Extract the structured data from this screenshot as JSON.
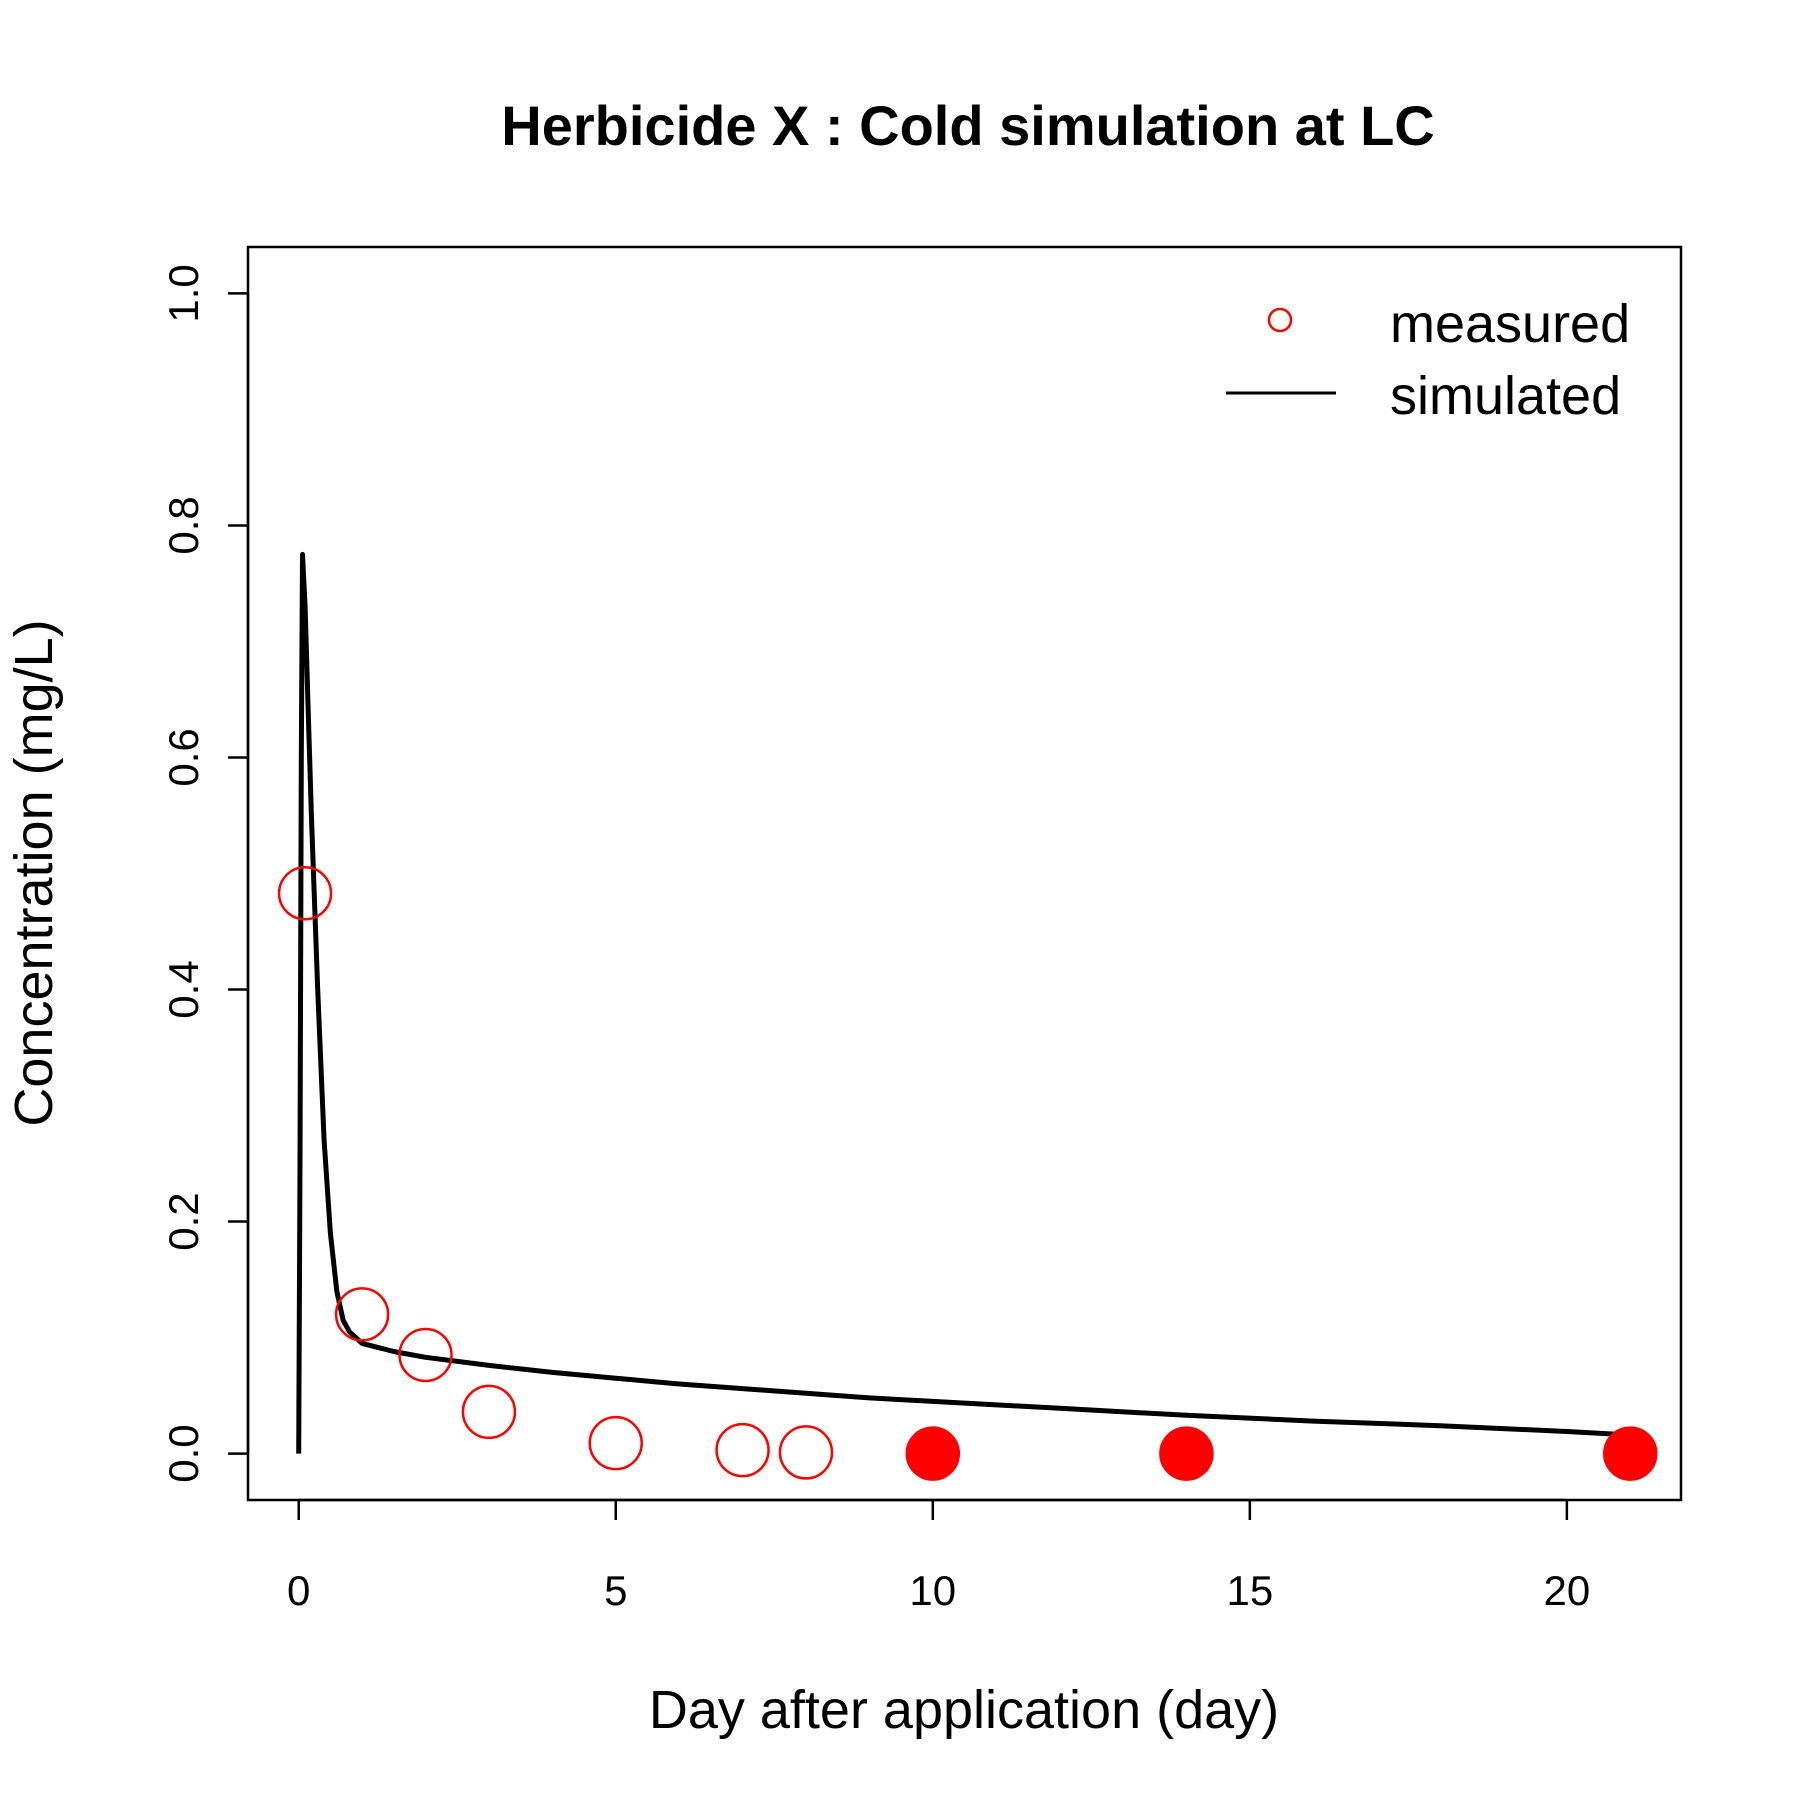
{
  "chart_data": {
    "type": "scatter",
    "title": "Herbicide X : Cold simulation at  LC",
    "xlabel": "Day after application (day)",
    "ylabel": "Concentration (mg/L)",
    "xlim": [
      -0.8,
      21.8
    ],
    "ylim": [
      -0.04,
      1.04
    ],
    "x_ticks": [
      0,
      5,
      10,
      15,
      20
    ],
    "y_ticks": [
      0.0,
      0.2,
      0.4,
      0.6,
      0.8,
      1.0
    ],
    "x_tick_labels": [
      "0",
      "5",
      "10",
      "15",
      "20"
    ],
    "y_tick_labels": [
      "0.0",
      "0.2",
      "0.4",
      "0.6",
      "0.8",
      "1.0"
    ],
    "grid": false,
    "legend_position": "top-right",
    "legend": [
      {
        "label": "measured",
        "marker": "open-circle",
        "color": "#ff0000"
      },
      {
        "label": "simulated",
        "marker": "line",
        "color": "#000000"
      }
    ],
    "series": [
      {
        "name": "measured",
        "kind": "points",
        "color": "#ff0000",
        "points": [
          {
            "x": 0.1,
            "y": 0.483,
            "filled": false
          },
          {
            "x": 1,
            "y": 0.12,
            "filled": false
          },
          {
            "x": 2,
            "y": 0.085,
            "filled": false
          },
          {
            "x": 3,
            "y": 0.036,
            "filled": false
          },
          {
            "x": 5,
            "y": 0.009,
            "filled": false
          },
          {
            "x": 7,
            "y": 0.003,
            "filled": false
          },
          {
            "x": 8,
            "y": 0.001,
            "filled": false
          },
          {
            "x": 10,
            "y": 0.0,
            "filled": true
          },
          {
            "x": 14,
            "y": 0.0,
            "filled": true
          },
          {
            "x": 21,
            "y": 0.0,
            "filled": true
          }
        ]
      },
      {
        "name": "simulated",
        "kind": "line",
        "color": "#000000",
        "x": [
          0,
          0.02,
          0.04,
          0.06,
          0.1,
          0.15,
          0.2,
          0.3,
          0.4,
          0.5,
          0.6,
          0.7,
          0.8,
          1,
          1.5,
          2,
          3,
          4,
          5,
          6,
          7,
          8,
          9,
          10,
          12,
          14,
          16,
          18,
          20,
          21
        ],
        "y": [
          0,
          0.25,
          0.6,
          0.775,
          0.73,
          0.64,
          0.55,
          0.4,
          0.27,
          0.19,
          0.14,
          0.115,
          0.105,
          0.095,
          0.088,
          0.083,
          0.076,
          0.07,
          0.065,
          0.06,
          0.056,
          0.052,
          0.048,
          0.045,
          0.039,
          0.033,
          0.028,
          0.024,
          0.019,
          0.016
        ]
      }
    ]
  }
}
